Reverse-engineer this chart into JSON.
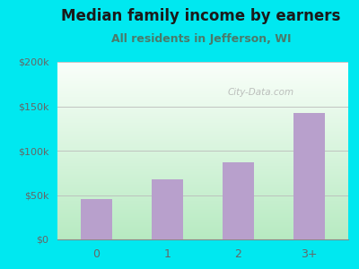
{
  "categories": [
    "0",
    "1",
    "2",
    "3+"
  ],
  "values": [
    45000,
    68000,
    87000,
    142000
  ],
  "bar_color": "#b8a0cc",
  "title": "Median family income by earners",
  "subtitle": "All residents in Jefferson, WI",
  "title_fontsize": 12,
  "subtitle_fontsize": 9,
  "title_color": "#1a1a1a",
  "subtitle_color": "#4a7a6a",
  "outer_bg": "#00e8f0",
  "ylim": [
    0,
    200000
  ],
  "yticks": [
    0,
    50000,
    100000,
    150000,
    200000
  ],
  "ytick_labels": [
    "$0",
    "$50k",
    "$100k",
    "$150k",
    "$200k"
  ],
  "tick_color": "#666666",
  "grid_color": "#bbbbbb",
  "watermark": "City-Data.com",
  "plot_bg_top": "#f0f8f0",
  "plot_bg_bottom": "#c8eec8"
}
